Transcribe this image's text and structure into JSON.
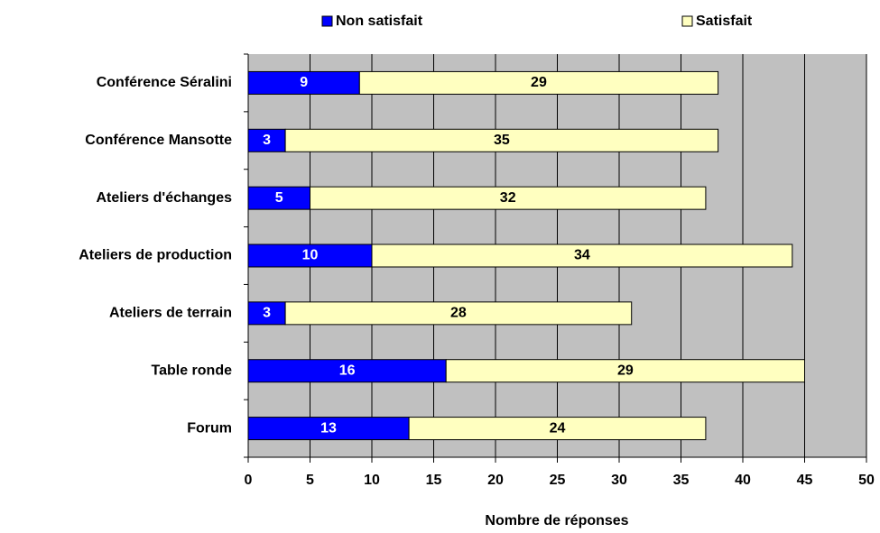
{
  "chart_data": {
    "type": "stacked_barh",
    "xlabel": "Nombre de réponses",
    "categories": [
      "Conférence Séralini",
      "Conférence Mansotte",
      "Ateliers d'échanges",
      "Ateliers de production",
      "Ateliers de terrain",
      "Table ronde",
      "Forum"
    ],
    "series": [
      {
        "name": "Non satisfait",
        "color": "#0000ff",
        "values": [
          9,
          3,
          5,
          10,
          3,
          16,
          13
        ]
      },
      {
        "name": "Satisfait",
        "color": "#ffffc0",
        "values": [
          29,
          35,
          32,
          34,
          28,
          29,
          24
        ]
      }
    ],
    "xlim": [
      0,
      50
    ],
    "xticks": [
      0,
      5,
      10,
      15,
      20,
      25,
      30,
      35,
      40,
      45,
      50
    ],
    "grid": true,
    "legend": "top"
  }
}
